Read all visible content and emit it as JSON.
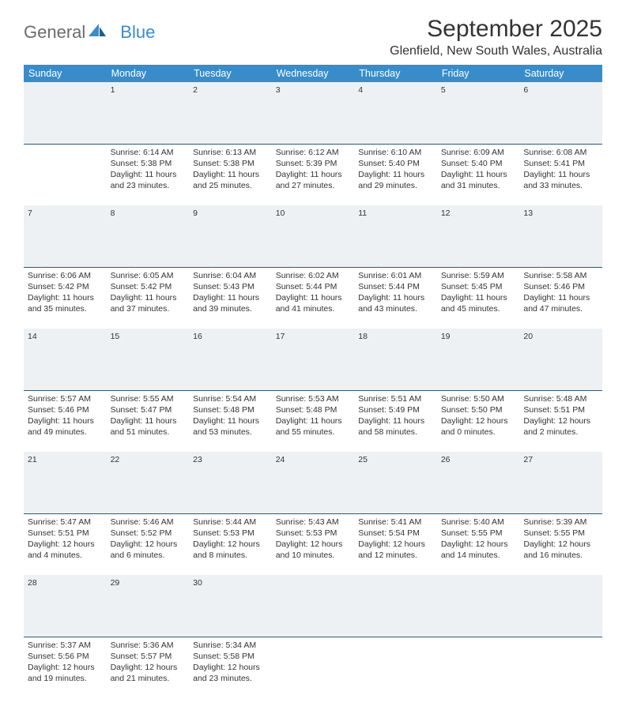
{
  "brand": {
    "part1": "General",
    "part2": "Blue"
  },
  "title": "September 2025",
  "location": "Glenfield, New South Wales, Australia",
  "colors": {
    "header_bg": "#3a8cc8",
    "header_text": "#ffffff",
    "dayrow_bg": "#eef1f3",
    "dayrow_border": "#2a5a7a",
    "body_text": "#333333",
    "logo_gray": "#6b6b6b",
    "logo_blue": "#3a8cc8"
  },
  "typography": {
    "title_fontsize": 30,
    "location_fontsize": 16,
    "header_fontsize": 12.5,
    "cell_fontsize": 10.5,
    "daynum_fontsize": 12
  },
  "weekdays": [
    "Sunday",
    "Monday",
    "Tuesday",
    "Wednesday",
    "Thursday",
    "Friday",
    "Saturday"
  ],
  "weeks": [
    {
      "nums": [
        "",
        "1",
        "2",
        "3",
        "4",
        "5",
        "6"
      ],
      "cells": [
        null,
        {
          "sunrise": "Sunrise: 6:14 AM",
          "sunset": "Sunset: 5:38 PM",
          "daylight": "Daylight: 11 hours and 23 minutes."
        },
        {
          "sunrise": "Sunrise: 6:13 AM",
          "sunset": "Sunset: 5:38 PM",
          "daylight": "Daylight: 11 hours and 25 minutes."
        },
        {
          "sunrise": "Sunrise: 6:12 AM",
          "sunset": "Sunset: 5:39 PM",
          "daylight": "Daylight: 11 hours and 27 minutes."
        },
        {
          "sunrise": "Sunrise: 6:10 AM",
          "sunset": "Sunset: 5:40 PM",
          "daylight": "Daylight: 11 hours and 29 minutes."
        },
        {
          "sunrise": "Sunrise: 6:09 AM",
          "sunset": "Sunset: 5:40 PM",
          "daylight": "Daylight: 11 hours and 31 minutes."
        },
        {
          "sunrise": "Sunrise: 6:08 AM",
          "sunset": "Sunset: 5:41 PM",
          "daylight": "Daylight: 11 hours and 33 minutes."
        }
      ]
    },
    {
      "nums": [
        "7",
        "8",
        "9",
        "10",
        "11",
        "12",
        "13"
      ],
      "cells": [
        {
          "sunrise": "Sunrise: 6:06 AM",
          "sunset": "Sunset: 5:42 PM",
          "daylight": "Daylight: 11 hours and 35 minutes."
        },
        {
          "sunrise": "Sunrise: 6:05 AM",
          "sunset": "Sunset: 5:42 PM",
          "daylight": "Daylight: 11 hours and 37 minutes."
        },
        {
          "sunrise": "Sunrise: 6:04 AM",
          "sunset": "Sunset: 5:43 PM",
          "daylight": "Daylight: 11 hours and 39 minutes."
        },
        {
          "sunrise": "Sunrise: 6:02 AM",
          "sunset": "Sunset: 5:44 PM",
          "daylight": "Daylight: 11 hours and 41 minutes."
        },
        {
          "sunrise": "Sunrise: 6:01 AM",
          "sunset": "Sunset: 5:44 PM",
          "daylight": "Daylight: 11 hours and 43 minutes."
        },
        {
          "sunrise": "Sunrise: 5:59 AM",
          "sunset": "Sunset: 5:45 PM",
          "daylight": "Daylight: 11 hours and 45 minutes."
        },
        {
          "sunrise": "Sunrise: 5:58 AM",
          "sunset": "Sunset: 5:46 PM",
          "daylight": "Daylight: 11 hours and 47 minutes."
        }
      ]
    },
    {
      "nums": [
        "14",
        "15",
        "16",
        "17",
        "18",
        "19",
        "20"
      ],
      "cells": [
        {
          "sunrise": "Sunrise: 5:57 AM",
          "sunset": "Sunset: 5:46 PM",
          "daylight": "Daylight: 11 hours and 49 minutes."
        },
        {
          "sunrise": "Sunrise: 5:55 AM",
          "sunset": "Sunset: 5:47 PM",
          "daylight": "Daylight: 11 hours and 51 minutes."
        },
        {
          "sunrise": "Sunrise: 5:54 AM",
          "sunset": "Sunset: 5:48 PM",
          "daylight": "Daylight: 11 hours and 53 minutes."
        },
        {
          "sunrise": "Sunrise: 5:53 AM",
          "sunset": "Sunset: 5:48 PM",
          "daylight": "Daylight: 11 hours and 55 minutes."
        },
        {
          "sunrise": "Sunrise: 5:51 AM",
          "sunset": "Sunset: 5:49 PM",
          "daylight": "Daylight: 11 hours and 58 minutes."
        },
        {
          "sunrise": "Sunrise: 5:50 AM",
          "sunset": "Sunset: 5:50 PM",
          "daylight": "Daylight: 12 hours and 0 minutes."
        },
        {
          "sunrise": "Sunrise: 5:48 AM",
          "sunset": "Sunset: 5:51 PM",
          "daylight": "Daylight: 12 hours and 2 minutes."
        }
      ]
    },
    {
      "nums": [
        "21",
        "22",
        "23",
        "24",
        "25",
        "26",
        "27"
      ],
      "cells": [
        {
          "sunrise": "Sunrise: 5:47 AM",
          "sunset": "Sunset: 5:51 PM",
          "daylight": "Daylight: 12 hours and 4 minutes."
        },
        {
          "sunrise": "Sunrise: 5:46 AM",
          "sunset": "Sunset: 5:52 PM",
          "daylight": "Daylight: 12 hours and 6 minutes."
        },
        {
          "sunrise": "Sunrise: 5:44 AM",
          "sunset": "Sunset: 5:53 PM",
          "daylight": "Daylight: 12 hours and 8 minutes."
        },
        {
          "sunrise": "Sunrise: 5:43 AM",
          "sunset": "Sunset: 5:53 PM",
          "daylight": "Daylight: 12 hours and 10 minutes."
        },
        {
          "sunrise": "Sunrise: 5:41 AM",
          "sunset": "Sunset: 5:54 PM",
          "daylight": "Daylight: 12 hours and 12 minutes."
        },
        {
          "sunrise": "Sunrise: 5:40 AM",
          "sunset": "Sunset: 5:55 PM",
          "daylight": "Daylight: 12 hours and 14 minutes."
        },
        {
          "sunrise": "Sunrise: 5:39 AM",
          "sunset": "Sunset: 5:55 PM",
          "daylight": "Daylight: 12 hours and 16 minutes."
        }
      ]
    },
    {
      "nums": [
        "28",
        "29",
        "30",
        "",
        "",
        "",
        ""
      ],
      "cells": [
        {
          "sunrise": "Sunrise: 5:37 AM",
          "sunset": "Sunset: 5:56 PM",
          "daylight": "Daylight: 12 hours and 19 minutes."
        },
        {
          "sunrise": "Sunrise: 5:36 AM",
          "sunset": "Sunset: 5:57 PM",
          "daylight": "Daylight: 12 hours and 21 minutes."
        },
        {
          "sunrise": "Sunrise: 5:34 AM",
          "sunset": "Sunset: 5:58 PM",
          "daylight": "Daylight: 12 hours and 23 minutes."
        },
        null,
        null,
        null,
        null
      ]
    }
  ]
}
